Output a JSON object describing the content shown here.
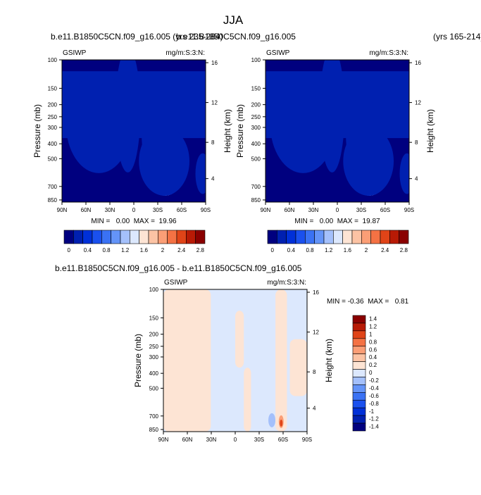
{
  "page": {
    "title": "JJA"
  },
  "chart_data": [
    {
      "type": "heatmap",
      "panel": "left",
      "case_title": "b.e11.B1850C5CN.f09_g16.005 (yrs 235-284)",
      "left_label": "GSIWP",
      "right_label": "mg/m:S:3:N:",
      "xlabel": "",
      "ylabel": "Pressure (mb)",
      "y2label": "Height (km)",
      "x_ticks": [
        "90N",
        "60N",
        "30N",
        "0",
        "30S",
        "60S",
        "90S"
      ],
      "y_ticks": [
        "100",
        "150",
        "200",
        "250",
        "300",
        "400",
        "500",
        "700",
        "850"
      ],
      "y2_ticks": [
        "16",
        "12",
        "8",
        "4"
      ],
      "stats": "MIN =   0.00  MAX =  19.96",
      "min": 0.0,
      "max": 19.96,
      "colorbar_labels": [
        "0",
        "0.4",
        "0.8",
        "1.2",
        "1.6",
        "2",
        "2.4",
        "2.8"
      ],
      "colorbar_levels": [
        0,
        0.2,
        0.4,
        0.6,
        0.8,
        1.0,
        1.2,
        1.4,
        1.6,
        1.8,
        2.0,
        2.2,
        2.4,
        2.6,
        2.8
      ]
    },
    {
      "type": "heatmap",
      "panel": "right",
      "case_title": "b.e11.B1850C5CN.f09_g16.005",
      "case_title_suffix": "(yrs 165-214)",
      "left_label": "GSIWP",
      "right_label": "mg/m:S:3:N:",
      "ylabel": "Pressure (mb)",
      "y2label": "Height (km)",
      "x_ticks": [
        "90N",
        "60N",
        "30N",
        "0",
        "30S",
        "60S",
        "90S"
      ],
      "y_ticks": [
        "100",
        "150",
        "200",
        "250",
        "300",
        "400",
        "500",
        "700",
        "850"
      ],
      "y2_ticks": [
        "16",
        "12",
        "8",
        "4"
      ],
      "stats": "MIN =   0.00  MAX =  19.87",
      "min": 0.0,
      "max": 19.87,
      "colorbar_labels": [
        "0",
        "0.4",
        "0.8",
        "1.2",
        "1.6",
        "2",
        "2.4",
        "2.8"
      ]
    },
    {
      "type": "heatmap",
      "panel": "difference",
      "case_title": "b.e11.B1850C5CN.f09_g16.005 - b.e11.B1850C5CN.f09_g16.005",
      "left_label": "GSIWP",
      "right_label": "mg/m:S:3:N:",
      "ylabel": "Pressure (mb)",
      "y2label": "Height (km)",
      "x_ticks": [
        "90N",
        "60N",
        "30N",
        "0",
        "30S",
        "60S",
        "90S"
      ],
      "y_ticks": [
        "100",
        "150",
        "200",
        "250",
        "300",
        "400",
        "500",
        "700",
        "850"
      ],
      "y2_ticks": [
        "16",
        "12",
        "8",
        "4"
      ],
      "stats": "MIN = -0.36  MAX =   0.81",
      "min": -0.36,
      "max": 0.81,
      "colorbar_labels": [
        "1.4",
        "1.2",
        "1",
        "0.8",
        "0.6",
        "0.4",
        "0.2",
        "0",
        "-0.2",
        "-0.4",
        "-0.6",
        "-0.8",
        "-1",
        "-1.2",
        "-1.4"
      ]
    }
  ],
  "colors": {
    "seq_scale": [
      "#00007f",
      "#0020b0",
      "#0030d8",
      "#1a50ee",
      "#3a72f4",
      "#6494f8",
      "#a4c0fb",
      "#dce8fd",
      "#fde4d4",
      "#fcc3a4",
      "#fb9e76",
      "#f47244",
      "#e04418",
      "#b81a05",
      "#8a0000"
    ],
    "div_scale": [
      "#8a0000",
      "#b81a05",
      "#e04418",
      "#f47244",
      "#fb9e76",
      "#fcc3a4",
      "#fde4d4",
      "#dce8fd",
      "#a4c0fb",
      "#6494f8",
      "#3a72f4",
      "#1a50ee",
      "#0030d8",
      "#0020b0",
      "#00007f"
    ]
  }
}
